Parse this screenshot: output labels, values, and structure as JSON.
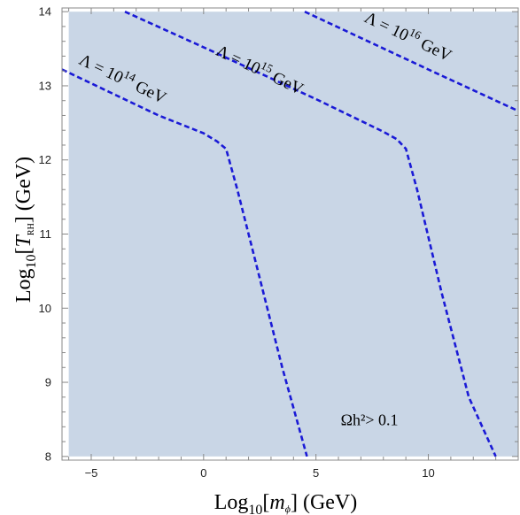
{
  "chart_data": {
    "type": "area",
    "title": "",
    "xlabel": "Log10[mφ] (GeV)",
    "ylabel": "Log10[TRH] (GeV)",
    "xlabel_parts": {
      "pre": "Log",
      "sub": "10",
      "bracket_open": "[",
      "var": "m",
      "var_sub": "ϕ",
      "bracket_close": "]",
      "unit": " (GeV)"
    },
    "ylabel_parts": {
      "pre": "Log",
      "sub": "10",
      "bracket_open": "[",
      "var": "T",
      "var_sub": "RH",
      "bracket_close": "]",
      "unit": " (GeV)"
    },
    "xlim": [
      -6.3,
      14.0
    ],
    "ylim": [
      7.95,
      14.05
    ],
    "xticks": [
      -5,
      0,
      5,
      10
    ],
    "yticks": [
      8,
      9,
      10,
      11,
      12,
      13,
      14
    ],
    "grid": false,
    "region": {
      "label": "Ωh²> 0.1",
      "color": "#c9d6e6",
      "x_range": [
        -6.0,
        14.0
      ],
      "y_range": [
        8.0,
        14.0
      ]
    },
    "series": [
      {
        "name": "Λ = 10^14 GeV",
        "label_base": "Λ = 10",
        "label_exp": "14",
        "label_unit": " GeV",
        "color": "#1a1ad6",
        "points": [
          [
            -6.3,
            13.22
          ],
          [
            -4.5,
            12.96
          ],
          [
            -2.0,
            12.6
          ],
          [
            0.0,
            12.36
          ],
          [
            0.6,
            12.25
          ],
          [
            1.0,
            12.15
          ],
          [
            1.5,
            11.6
          ],
          [
            2.5,
            10.4
          ],
          [
            3.5,
            9.2
          ],
          [
            4.6,
            8.0
          ]
        ]
      },
      {
        "name": "Λ = 10^15 GeV",
        "label_base": "Λ = 10",
        "label_exp": "15",
        "label_unit": " GeV",
        "color": "#1a1ad6",
        "points": [
          [
            -3.5,
            14.0
          ],
          [
            0.0,
            13.52
          ],
          [
            5.0,
            12.82
          ],
          [
            8.0,
            12.38
          ],
          [
            8.6,
            12.28
          ],
          [
            9.0,
            12.15
          ],
          [
            9.5,
            11.6
          ],
          [
            10.6,
            10.2
          ],
          [
            11.8,
            8.8
          ],
          [
            13.0,
            8.0
          ]
        ]
      },
      {
        "name": "Λ = 10^16 GeV",
        "label_base": "Λ = 10",
        "label_exp": "16",
        "label_unit": " GeV",
        "color": "#1a1ad6",
        "points": [
          [
            4.5,
            14.0
          ],
          [
            10.0,
            13.22
          ],
          [
            14.0,
            12.66
          ]
        ]
      }
    ]
  }
}
